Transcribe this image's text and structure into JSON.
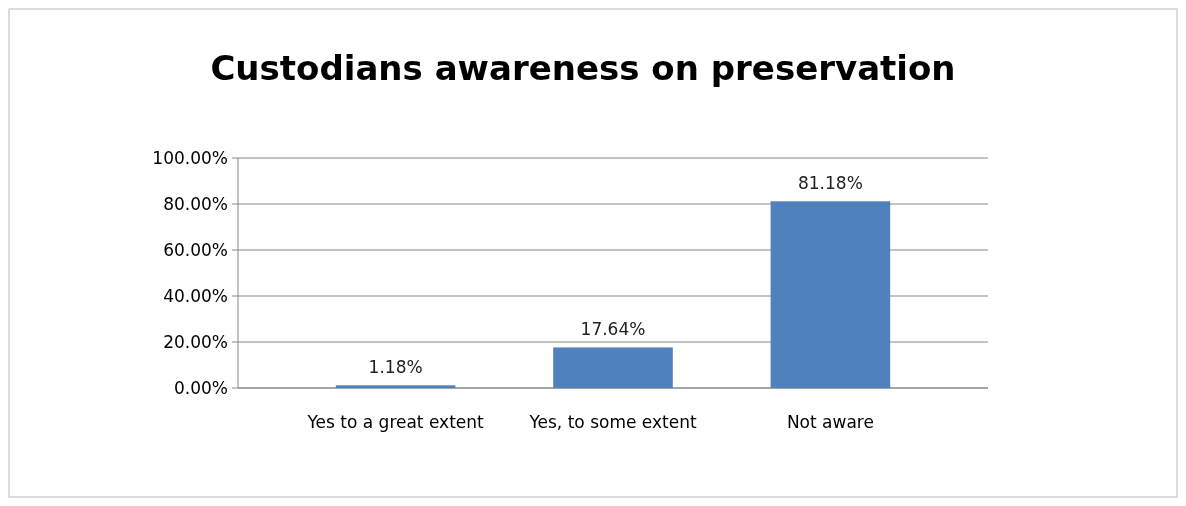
{
  "chart_data": {
    "type": "bar",
    "title": "Custodians awareness on preservation",
    "categories": [
      "Yes to a great extent",
      "Yes, to some extent",
      "Not aware"
    ],
    "values": [
      1.18,
      17.64,
      81.18
    ],
    "color": "#4f81bd",
    "value_labels": [
      "1.18%",
      "17.64%",
      "81.18%"
    ],
    "ylim": [
      0,
      100
    ],
    "yticks": [
      {
        "value": 0,
        "label": "0.00%"
      },
      {
        "value": 20,
        "label": "20.00%"
      },
      {
        "value": 40,
        "label": "40.00%"
      },
      {
        "value": 60,
        "label": "60.00%"
      },
      {
        "value": 80,
        "label": "80.00%"
      },
      {
        "value": 100,
        "label": "100.00%"
      }
    ],
    "grid": true
  }
}
